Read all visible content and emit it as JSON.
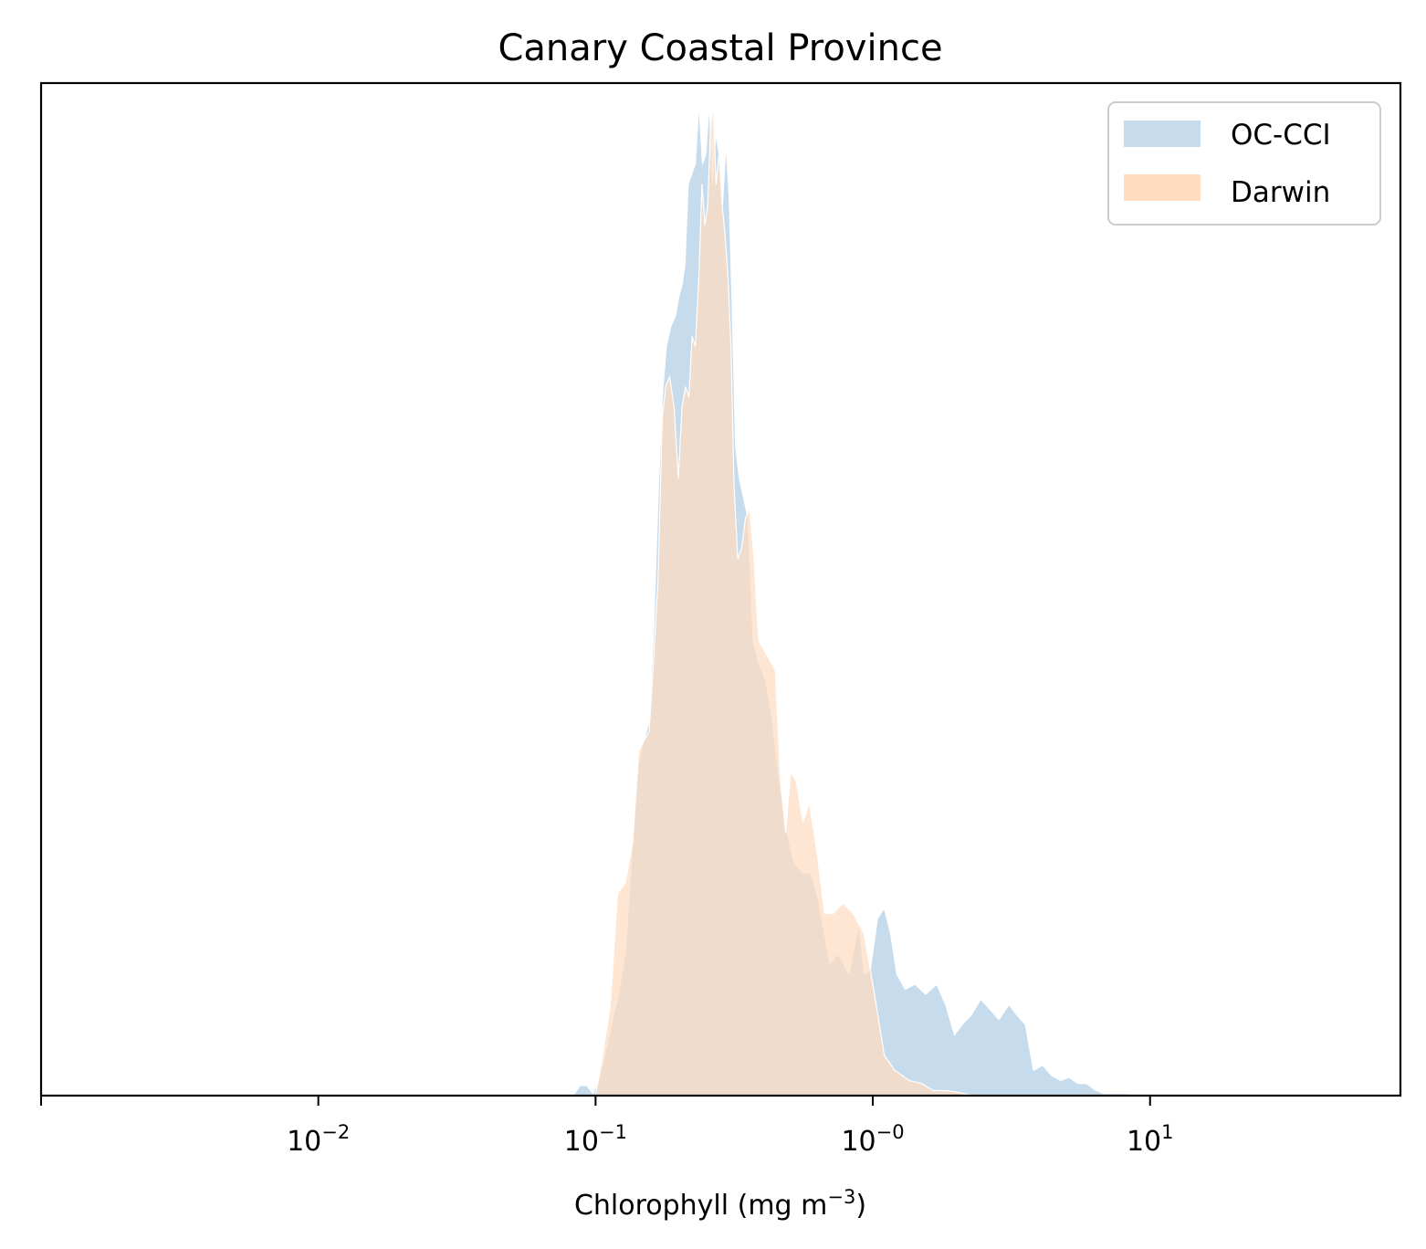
{
  "chart_data": {
    "type": "area",
    "title": "Canary Coastal Province",
    "xlabel": "Chlorophyll  (mg m",
    "xlabel_exponent": "−3",
    "xlabel_suffix": ")",
    "x_scale": "log",
    "xlim": [
      0.001,
      80
    ],
    "ylim": [
      0,
      1.0
    ],
    "y_ticks_shown": false,
    "grid": false,
    "legend_position": "top-right",
    "x_ticks": [
      {
        "value": 0.01,
        "base": "10",
        "exp": "−2"
      },
      {
        "value": 0.1,
        "base": "10",
        "exp": "−1"
      },
      {
        "value": 1,
        "base": "10",
        "exp": "−0"
      },
      {
        "value": 10,
        "base": "10",
        "exp": "1"
      }
    ],
    "series": [
      {
        "name": "OC-CCI",
        "color": "#c6dbec",
        "points": [
          [
            0.083,
            0
          ],
          [
            0.088,
            0.01
          ],
          [
            0.093,
            0.01
          ],
          [
            0.098,
            0.002
          ],
          [
            0.104,
            0.02
          ],
          [
            0.112,
            0.06
          ],
          [
            0.121,
            0.1
          ],
          [
            0.128,
            0.14
          ],
          [
            0.133,
            0.21
          ],
          [
            0.137,
            0.26
          ],
          [
            0.143,
            0.33
          ],
          [
            0.149,
            0.35
          ],
          [
            0.156,
            0.37
          ],
          [
            0.162,
            0.46
          ],
          [
            0.168,
            0.59
          ],
          [
            0.174,
            0.69
          ],
          [
            0.18,
            0.74
          ],
          [
            0.187,
            0.76
          ],
          [
            0.194,
            0.77
          ],
          [
            0.2,
            0.79
          ],
          [
            0.205,
            0.8
          ],
          [
            0.21,
            0.82
          ],
          [
            0.216,
            0.9
          ],
          [
            0.222,
            0.91
          ],
          [
            0.229,
            0.92
          ],
          [
            0.236,
            0.98
          ],
          [
            0.243,
            0.92
          ],
          [
            0.25,
            0.93
          ],
          [
            0.257,
            0.98
          ],
          [
            0.264,
            0.9
          ],
          [
            0.271,
            0.95
          ],
          [
            0.279,
            0.93
          ],
          [
            0.287,
            0.88
          ],
          [
            0.295,
            0.94
          ],
          [
            0.303,
            0.89
          ],
          [
            0.311,
            0.78
          ],
          [
            0.32,
            0.64
          ],
          [
            0.33,
            0.61
          ],
          [
            0.342,
            0.59
          ],
          [
            0.355,
            0.57
          ],
          [
            0.37,
            0.45
          ],
          [
            0.385,
            0.43
          ],
          [
            0.398,
            0.42
          ],
          [
            0.41,
            0.41
          ],
          [
            0.43,
            0.38
          ],
          [
            0.46,
            0.31
          ],
          [
            0.49,
            0.26
          ],
          [
            0.52,
            0.23
          ],
          [
            0.56,
            0.22
          ],
          [
            0.6,
            0.22
          ],
          [
            0.64,
            0.19
          ],
          [
            0.7,
            0.13
          ],
          [
            0.75,
            0.14
          ],
          [
            0.82,
            0.12
          ],
          [
            0.89,
            0.17
          ],
          [
            0.93,
            0.12
          ],
          [
            0.98,
            0.125
          ],
          [
            1.04,
            0.175
          ],
          [
            1.1,
            0.185
          ],
          [
            1.16,
            0.16
          ],
          [
            1.22,
            0.12
          ],
          [
            1.31,
            0.105
          ],
          [
            1.42,
            0.11
          ],
          [
            1.55,
            0.1
          ],
          [
            1.7,
            0.11
          ],
          [
            1.83,
            0.09
          ],
          [
            1.97,
            0.06
          ],
          [
            2.1,
            0.07
          ],
          [
            2.27,
            0.08
          ],
          [
            2.45,
            0.095
          ],
          [
            2.65,
            0.085
          ],
          [
            2.85,
            0.075
          ],
          [
            3.1,
            0.09
          ],
          [
            3.3,
            0.08
          ],
          [
            3.55,
            0.07
          ],
          [
            3.8,
            0.025
          ],
          [
            4.1,
            0.03
          ],
          [
            4.4,
            0.02
          ],
          [
            4.75,
            0.015
          ],
          [
            5.1,
            0.018
          ],
          [
            5.5,
            0.012
          ],
          [
            5.9,
            0.012
          ],
          [
            6.3,
            0.006
          ],
          [
            6.8,
            0.002
          ],
          [
            7.3,
            0.002
          ],
          [
            8.0,
            0.002
          ],
          [
            9.0,
            0.001
          ],
          [
            10.0,
            0
          ]
        ]
      },
      {
        "name": "Darwin",
        "color": "#ffdcc0",
        "points": [
          [
            0.1,
            0
          ],
          [
            0.106,
            0.04
          ],
          [
            0.113,
            0.09
          ],
          [
            0.12,
            0.2
          ],
          [
            0.128,
            0.21
          ],
          [
            0.136,
            0.25
          ],
          [
            0.143,
            0.34
          ],
          [
            0.149,
            0.35
          ],
          [
            0.156,
            0.36
          ],
          [
            0.162,
            0.43
          ],
          [
            0.168,
            0.51
          ],
          [
            0.174,
            0.67
          ],
          [
            0.179,
            0.7
          ],
          [
            0.185,
            0.71
          ],
          [
            0.192,
            0.68
          ],
          [
            0.199,
            0.61
          ],
          [
            0.205,
            0.68
          ],
          [
            0.211,
            0.7
          ],
          [
            0.217,
            0.69
          ],
          [
            0.223,
            0.75
          ],
          [
            0.229,
            0.74
          ],
          [
            0.236,
            0.81
          ],
          [
            0.242,
            0.9
          ],
          [
            0.248,
            0.86
          ],
          [
            0.254,
            0.88
          ],
          [
            0.26,
            0.96
          ],
          [
            0.266,
            0.98
          ],
          [
            0.272,
            0.9
          ],
          [
            0.279,
            0.93
          ],
          [
            0.286,
            0.88
          ],
          [
            0.293,
            0.85
          ],
          [
            0.3,
            0.81
          ],
          [
            0.308,
            0.74
          ],
          [
            0.316,
            0.6
          ],
          [
            0.326,
            0.53
          ],
          [
            0.336,
            0.54
          ],
          [
            0.347,
            0.57
          ],
          [
            0.36,
            0.58
          ],
          [
            0.373,
            0.53
          ],
          [
            0.387,
            0.45
          ],
          [
            0.405,
            0.44
          ],
          [
            0.425,
            0.43
          ],
          [
            0.445,
            0.42
          ],
          [
            0.465,
            0.31
          ],
          [
            0.485,
            0.26
          ],
          [
            0.505,
            0.32
          ],
          [
            0.53,
            0.31
          ],
          [
            0.56,
            0.27
          ],
          [
            0.59,
            0.29
          ],
          [
            0.63,
            0.24
          ],
          [
            0.67,
            0.18
          ],
          [
            0.72,
            0.18
          ],
          [
            0.78,
            0.19
          ],
          [
            0.85,
            0.18
          ],
          [
            0.93,
            0.16
          ],
          [
            1.0,
            0.11
          ],
          [
            1.1,
            0.04
          ],
          [
            1.2,
            0.025
          ],
          [
            1.35,
            0.015
          ],
          [
            1.5,
            0.012
          ],
          [
            1.65,
            0.005
          ],
          [
            1.85,
            0.005
          ],
          [
            2.05,
            0.003
          ],
          [
            2.3,
            0
          ]
        ]
      }
    ]
  }
}
